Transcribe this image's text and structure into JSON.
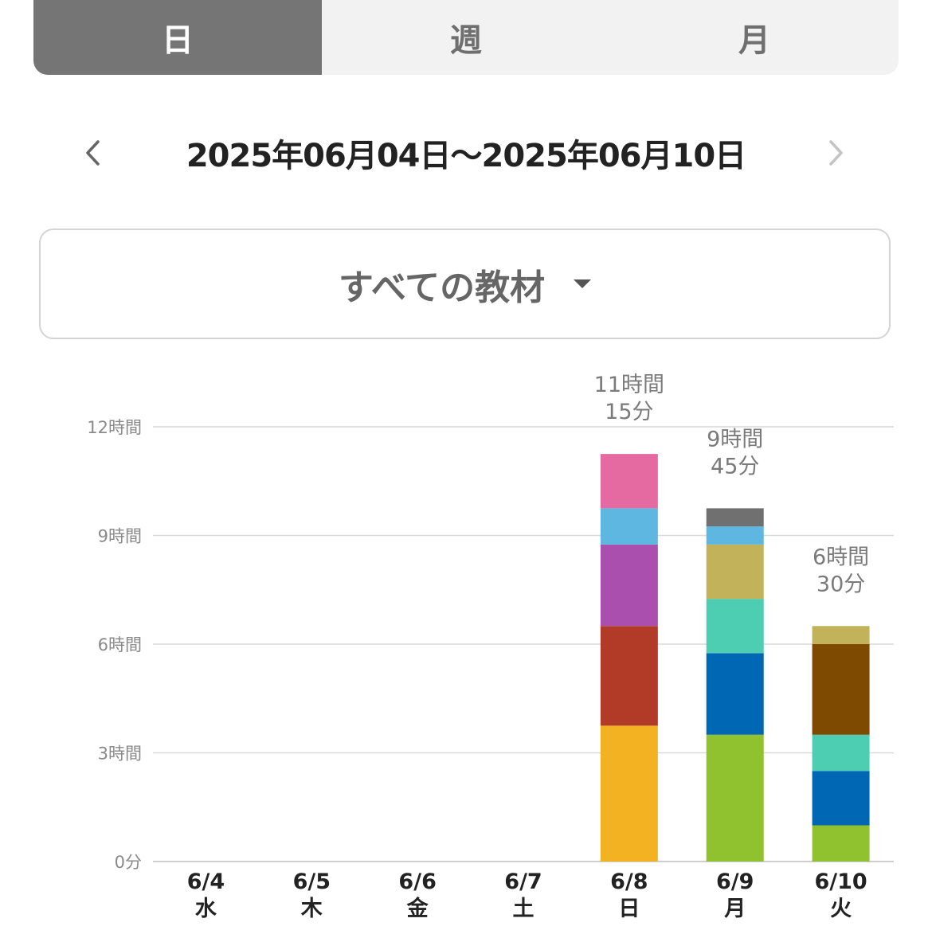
{
  "tabs": [
    {
      "label": "日",
      "active": true
    },
    {
      "label": "週",
      "active": false
    },
    {
      "label": "月",
      "active": false
    }
  ],
  "date_range": "2025年06月04日〜2025年06月10日",
  "material_select": {
    "label": "すべての教材"
  },
  "icons": {
    "prev": "chevron-left-icon",
    "next": "chevron-right-icon",
    "dropdown": "caret-down-icon"
  },
  "colors": {
    "active_tab": "#757575",
    "inactive_tab": "#f2f2f2",
    "grid": "#d9d9d9",
    "segments": [
      "#f3b221",
      "#b23b27",
      "#ab4fae",
      "#5db7e0",
      "#e66aa2",
      "#90c230",
      "#0067b4",
      "#4dcdb2",
      "#c2b35a",
      "#707070",
      "#7e4a02"
    ]
  },
  "chart_data": {
    "type": "bar",
    "stacked": true,
    "unit": "hours",
    "categories": [
      "6/4",
      "6/5",
      "6/6",
      "6/7",
      "6/8",
      "6/9",
      "6/10"
    ],
    "weekdays": [
      "水",
      "木",
      "金",
      "土",
      "日",
      "月",
      "火"
    ],
    "ylim": [
      0,
      12
    ],
    "yticks": [
      0,
      3,
      6,
      9,
      12
    ],
    "ytick_labels": [
      "0分",
      "3時間",
      "6時間",
      "9時間",
      "12時間"
    ],
    "grid": true,
    "totals": [
      0,
      0,
      0,
      0,
      11.25,
      9.75,
      6.5
    ],
    "total_labels": [
      "",
      "",
      "",
      "",
      "11時間\n15分",
      "9時間\n45分",
      "6時間\n30分"
    ],
    "stacks": [
      [],
      [],
      [],
      [],
      [
        {
          "value": 3.75,
          "color": "#f3b221"
        },
        {
          "value": 2.75,
          "color": "#b23b27"
        },
        {
          "value": 2.25,
          "color": "#ab4fae"
        },
        {
          "value": 1.0,
          "color": "#5db7e0"
        },
        {
          "value": 1.5,
          "color": "#e66aa2"
        }
      ],
      [
        {
          "value": 3.5,
          "color": "#90c230"
        },
        {
          "value": 2.25,
          "color": "#0067b4"
        },
        {
          "value": 1.5,
          "color": "#4dcdb2"
        },
        {
          "value": 1.5,
          "color": "#c2b35a"
        },
        {
          "value": 0.5,
          "color": "#5db7e0"
        },
        {
          "value": 0.5,
          "color": "#707070"
        }
      ],
      [
        {
          "value": 1.0,
          "color": "#90c230"
        },
        {
          "value": 1.5,
          "color": "#0067b4"
        },
        {
          "value": 1.0,
          "color": "#4dcdb2"
        },
        {
          "value": 2.5,
          "color": "#7e4a02"
        },
        {
          "value": 0.5,
          "color": "#c2b35a"
        }
      ]
    ]
  }
}
